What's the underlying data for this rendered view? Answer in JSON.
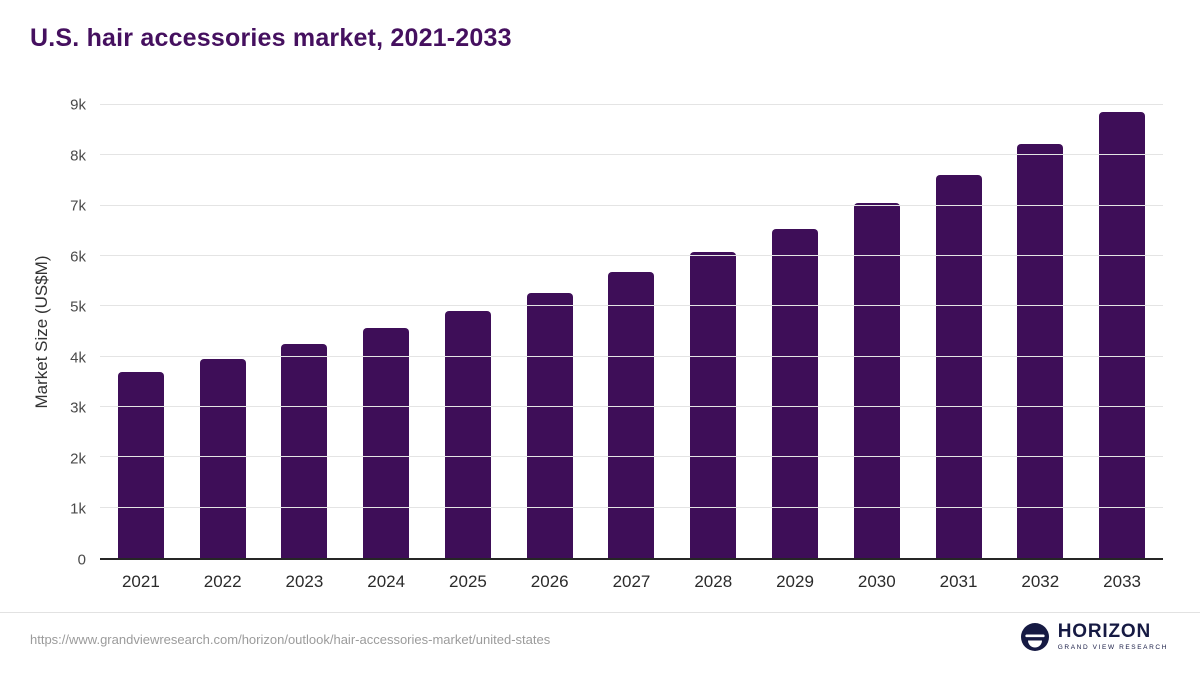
{
  "title": "U.S. hair accessories market, 2021-2033",
  "colors": {
    "bar": "#3E0E58",
    "title": "#45105F",
    "axis": "#262626",
    "gridline": "#e4e4e4",
    "logo_navy": "#161A43"
  },
  "chart_data": {
    "type": "bar",
    "title": "U.S. hair accessories market, 2021-2033",
    "categories": [
      "2021",
      "2022",
      "2023",
      "2024",
      "2025",
      "2026",
      "2027",
      "2028",
      "2029",
      "2030",
      "2031",
      "2032",
      "2033"
    ],
    "values": [
      3700,
      3950,
      4250,
      4560,
      4900,
      5270,
      5690,
      6080,
      6540,
      7060,
      7610,
      8230,
      8870
    ],
    "xlabel": "",
    "ylabel": "Market Size (US$M)",
    "ylim": [
      0,
      9000
    ],
    "grid": true,
    "legend": "none",
    "yticks": [
      {
        "value": 0,
        "label": "0"
      },
      {
        "value": 1000,
        "label": "1k"
      },
      {
        "value": 2000,
        "label": "2k"
      },
      {
        "value": 3000,
        "label": "3k"
      },
      {
        "value": 4000,
        "label": "4k"
      },
      {
        "value": 5000,
        "label": "5k"
      },
      {
        "value": 6000,
        "label": "6k"
      },
      {
        "value": 7000,
        "label": "7k"
      },
      {
        "value": 8000,
        "label": "8k"
      },
      {
        "value": 9000,
        "label": "9k"
      }
    ]
  },
  "footer": {
    "source_url": "https://www.grandviewresearch.com/horizon/outlook/hair-accessories-market/united-states",
    "logo_title": "HORIZON",
    "logo_subtitle": "GRAND VIEW RESEARCH"
  }
}
